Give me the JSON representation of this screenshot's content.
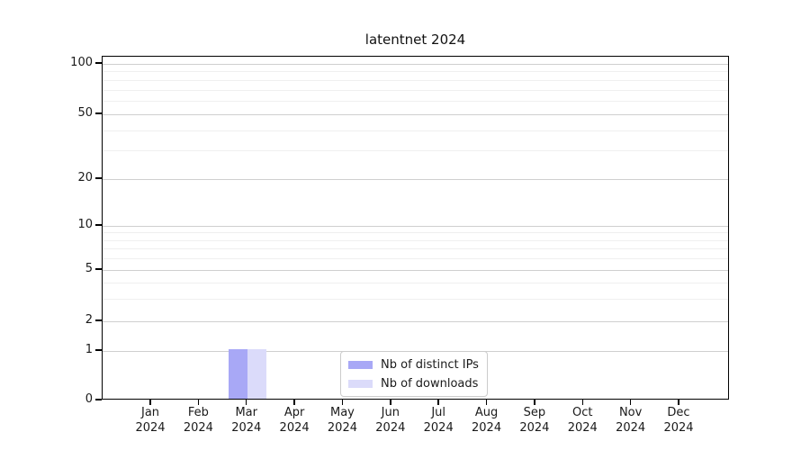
{
  "chart_data": {
    "type": "bar",
    "title": "latentnet 2024",
    "categories": [
      "Jan",
      "Feb",
      "Mar",
      "Apr",
      "May",
      "Jun",
      "Jul",
      "Aug",
      "Sep",
      "Oct",
      "Nov",
      "Dec"
    ],
    "year_label": "2024",
    "series": [
      {
        "name": "Nb of distinct IPs",
        "color": "#a8a8f6",
        "values": [
          0,
          0,
          1,
          0,
          0,
          0,
          0,
          0,
          0,
          0,
          0,
          0
        ]
      },
      {
        "name": "Nb of downloads",
        "color": "#dbdbfa",
        "values": [
          0,
          0,
          1,
          0,
          0,
          0,
          0,
          0,
          0,
          0,
          0,
          0
        ]
      }
    ],
    "yscale": "symlog",
    "ylim": [
      0,
      100
    ],
    "yticks": [
      0,
      1,
      2,
      5,
      10,
      20,
      50,
      100
    ],
    "yticks_minor": [
      3,
      4,
      6,
      7,
      8,
      9,
      30,
      40,
      60,
      70,
      80,
      90
    ],
    "grid": "horizontal",
    "grid_major_color": "#cfcfcf",
    "grid_minor_color": "#efefef",
    "legend_position": "bottom-center",
    "background_color": "#ffffff"
  }
}
